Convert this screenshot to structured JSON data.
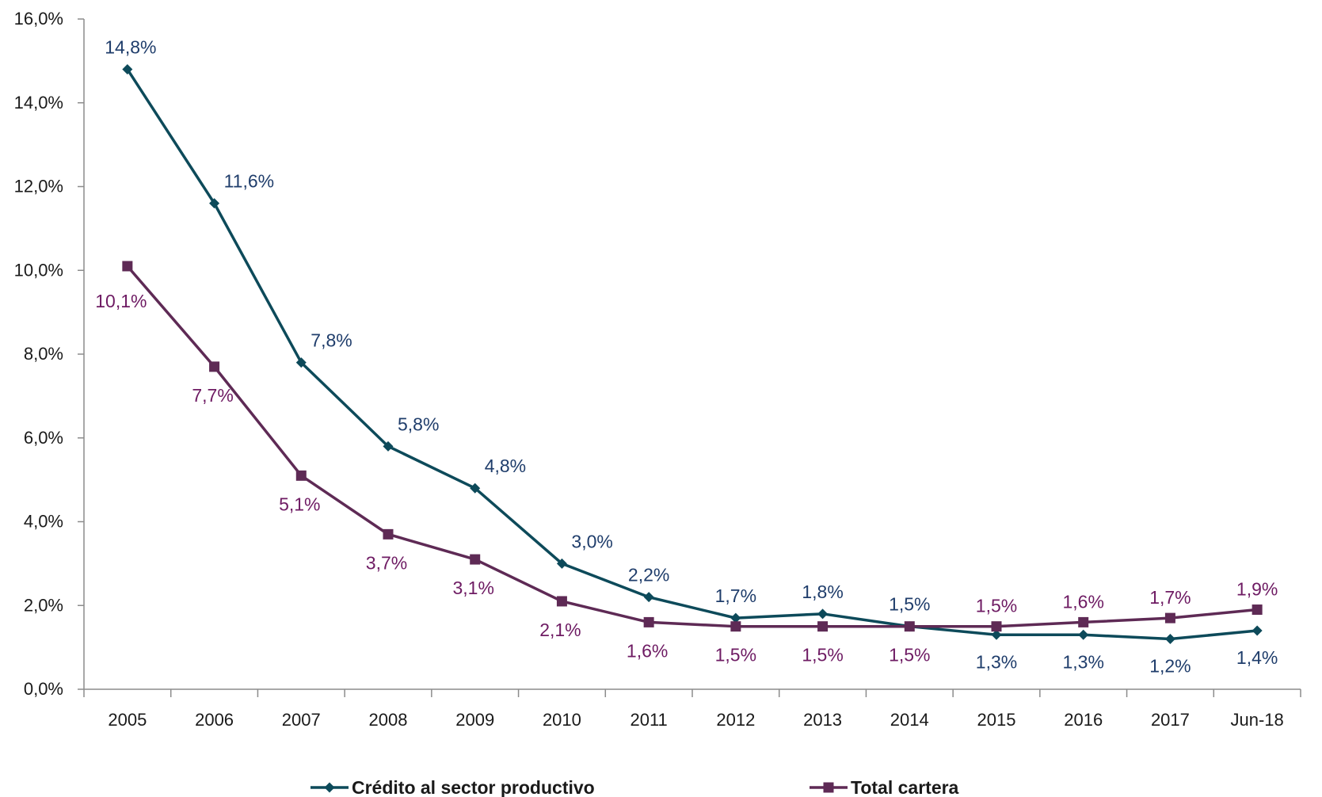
{
  "chart_data": {
    "type": "line",
    "title": "",
    "xlabel": "",
    "ylabel": "",
    "categories": [
      "2005",
      "2006",
      "2007",
      "2008",
      "2009",
      "2010",
      "2011",
      "2012",
      "2013",
      "2014",
      "2015",
      "2016",
      "2017",
      "Jun-18"
    ],
    "ylim": [
      0,
      16
    ],
    "yticks": [
      "0,0%",
      "2,0%",
      "4,0%",
      "6,0%",
      "8,0%",
      "10,0%",
      "12,0%",
      "14,0%",
      "16,0%"
    ],
    "grid": false,
    "legend_position": "bottom",
    "series": [
      {
        "name": "Crédito al sector productivo",
        "color": "#0d4a5a",
        "label_color": "#1f3d6b",
        "marker": "diamond",
        "values": [
          14.8,
          11.6,
          7.8,
          5.8,
          4.8,
          3.0,
          2.2,
          1.7,
          1.8,
          1.5,
          1.3,
          1.3,
          1.2,
          1.4
        ],
        "labels": [
          "14,8%",
          "11,6%",
          "7,8%",
          "5,8%",
          "4,8%",
          "3,0%",
          "2,2%",
          "1,7%",
          "1,8%",
          "1,5%",
          "1,3%",
          "1,3%",
          "1,2%",
          "1,4%"
        ]
      },
      {
        "name": "Total cartera",
        "color": "#5e2a55",
        "label_color": "#6e1b63",
        "marker": "square",
        "values": [
          10.1,
          7.7,
          5.1,
          3.7,
          3.1,
          2.1,
          1.6,
          1.5,
          1.5,
          1.5,
          1.5,
          1.6,
          1.7,
          1.9
        ],
        "labels": [
          "10,1%",
          "7,7%",
          "5,1%",
          "3,7%",
          "3,1%",
          "2,1%",
          "1,6%",
          "1,5%",
          "1,5%",
          "1,5%",
          "1,5%",
          "1,6%",
          "1,7%",
          "1,9%"
        ]
      }
    ]
  }
}
